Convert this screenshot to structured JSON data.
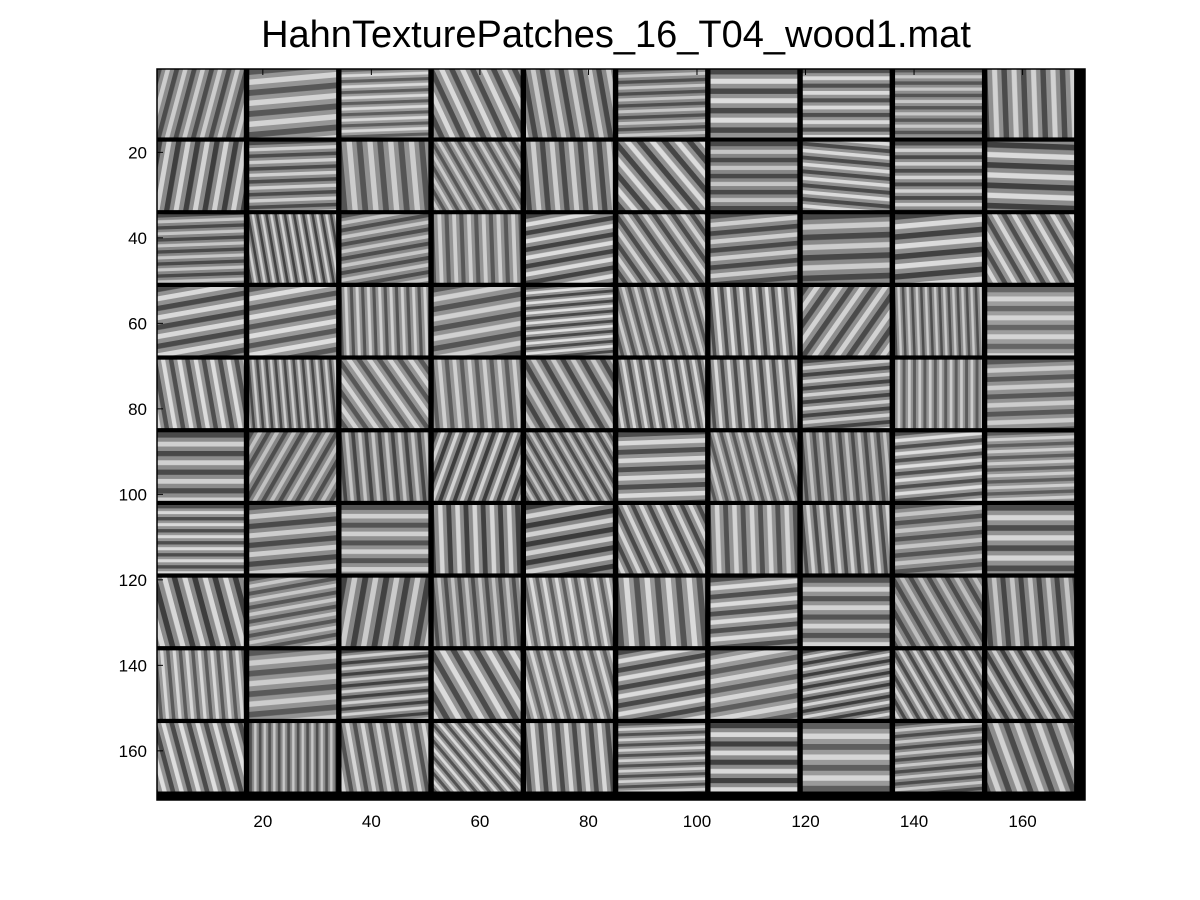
{
  "chart_data": {
    "type": "heatmap",
    "title": "HahnTexturePatches_16_T04_wood1.mat",
    "grid": {
      "rows": 10,
      "cols": 10,
      "patch_size": 16,
      "separator": 1
    },
    "xlim": [
      0.5,
      171.5
    ],
    "ylim": [
      0.5,
      171.5
    ],
    "y_reversed": true,
    "xticks": [
      20,
      40,
      60,
      80,
      100,
      120,
      140,
      160
    ],
    "yticks": [
      20,
      40,
      60,
      80,
      100,
      120,
      140,
      160
    ],
    "xtick_labels": [
      "20",
      "40",
      "60",
      "80",
      "100",
      "120",
      "140",
      "160"
    ],
    "ytick_labels": [
      "20",
      "40",
      "60",
      "80",
      "100",
      "120",
      "140",
      "160"
    ],
    "colormap": "gray",
    "separator_color": "#000000",
    "patch_orientations_deg": [
      [
        15,
        85,
        88,
        155,
        170,
        88,
        90,
        90,
        90,
        178
      ],
      [
        10,
        88,
        175,
        150,
        175,
        140,
        90,
        95,
        90,
        92
      ],
      [
        88,
        170,
        80,
        178,
        80,
        145,
        85,
        88,
        85,
        150
      ],
      [
        80,
        80,
        178,
        80,
        85,
        165,
        175,
        35,
        178,
        90
      ],
      [
        170,
        175,
        145,
        175,
        150,
        170,
        175,
        85,
        180,
        88
      ],
      [
        90,
        30,
        175,
        20,
        150,
        88,
        165,
        175,
        85,
        88
      ],
      [
        90,
        85,
        90,
        178,
        80,
        155,
        178,
        175,
        85,
        90
      ],
      [
        165,
        80,
        10,
        175,
        170,
        175,
        85,
        90,
        150,
        175
      ],
      [
        175,
        85,
        85,
        150,
        165,
        80,
        80,
        80,
        150,
        150
      ],
      [
        165,
        0,
        170,
        140,
        175,
        88,
        90,
        90,
        85,
        160
      ]
    ]
  }
}
